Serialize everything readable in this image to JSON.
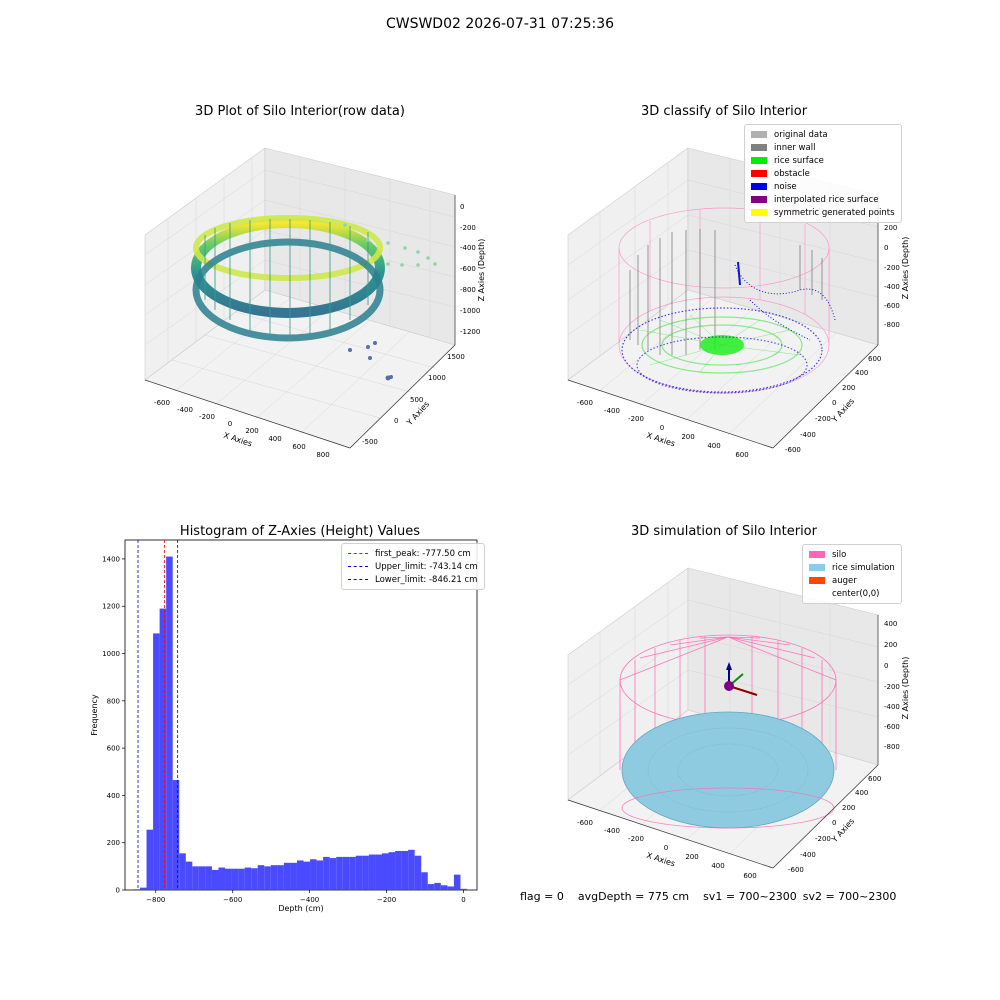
{
  "figure": {
    "suptitle": "CWSWD02 2026-07-31 07:25:36"
  },
  "footer": {
    "flag": "flag = 0",
    "avg_depth": "avgDepth = 775 cm",
    "sv1": "sv1 = 700~2300",
    "sv2": "sv2 = 700~2300"
  },
  "panels": {
    "raw": {
      "title": "3D Plot of Silo Interior(row data)",
      "xlabel": "X Axies",
      "ylabel": "Y Axies",
      "zlabel": "Z Axies (Depth)",
      "xticks": [
        "-600",
        "-400",
        "-200",
        "0",
        "200",
        "400",
        "600",
        "800"
      ],
      "yticks": [
        "-500",
        "0",
        "500",
        "1000",
        "1500"
      ],
      "zticks": [
        "0",
        "-200",
        "-400",
        "-600",
        "-800",
        "-1000",
        "-1200"
      ]
    },
    "classify": {
      "title": "3D classify of Silo Interior",
      "xlabel": "X Axies",
      "ylabel": "Y Axies",
      "zlabel": "Z Axies (Depth)",
      "xticks": [
        "-600",
        "-400",
        "-200",
        "0",
        "200",
        "400",
        "600"
      ],
      "yticks": [
        "-600",
        "-400",
        "-200",
        "0",
        "200",
        "400",
        "600"
      ],
      "zticks": [
        "200",
        "0",
        "-200",
        "-400",
        "-600",
        "-800"
      ],
      "legend": [
        {
          "label": "original data",
          "color": "#b0b0b0"
        },
        {
          "label": "inner wall",
          "color": "#808080"
        },
        {
          "label": "rice surface",
          "color": "#00ee00"
        },
        {
          "label": "obstacle",
          "color": "#ff0000"
        },
        {
          "label": "noise",
          "color": "#0000ee"
        },
        {
          "label": "interpolated rice surface",
          "color": "#800080"
        },
        {
          "label": "symmetric generated points",
          "color": "#ffff00"
        }
      ]
    },
    "histogram": {
      "title": "Histogram of Z-Axies (Height) Values",
      "legend": [
        {
          "label": "first_peak: -777.50 cm",
          "color": "#ff0000"
        },
        {
          "label": "Upper_limit: -743.14 cm",
          "color": "#0000cc"
        },
        {
          "label": "Lower_limit: -846.21 cm",
          "color": "#0000cc"
        }
      ]
    },
    "simulation": {
      "title": "3D simulation of Silo Interior",
      "xlabel": "X Axies",
      "ylabel": "Y Axies",
      "zlabel": "Z Axies (Depth)",
      "xticks": [
        "-600",
        "-400",
        "-200",
        "0",
        "200",
        "400",
        "600"
      ],
      "yticks": [
        "-600",
        "-400",
        "-200",
        "0",
        "200",
        "400",
        "600"
      ],
      "zticks": [
        "400",
        "200",
        "0",
        "-200",
        "-400",
        "-600",
        "-800"
      ],
      "legend": [
        {
          "label": "silo",
          "color": "#ff69b4"
        },
        {
          "label": "rice simulation",
          "color": "#87ceeb"
        },
        {
          "label": "auger",
          "color": "#ff4500"
        },
        {
          "label": "center(0,0)",
          "color": "#ffffff"
        }
      ]
    }
  },
  "chart_data": {
    "type": "bar",
    "title": "Histogram of Z-Axies (Height) Values",
    "xlabel": "Depth (cm)",
    "ylabel": "Frequency",
    "xlim": [
      -880,
      35
    ],
    "ylim": [
      0,
      1480
    ],
    "xticks": [
      -800,
      -600,
      -400,
      -200,
      0
    ],
    "yticks": [
      0,
      200,
      400,
      600,
      800,
      1000,
      1200,
      1400
    ],
    "bin_width": 17,
    "bin_starts": [
      -858,
      -841,
      -824,
      -807,
      -790,
      -773,
      -756,
      -739,
      -722,
      -705,
      -688,
      -671,
      -654,
      -637,
      -620,
      -603,
      -586,
      -569,
      -552,
      -535,
      -518,
      -501,
      -484,
      -467,
      -450,
      -433,
      -416,
      -399,
      -382,
      -365,
      -348,
      -331,
      -314,
      -297,
      -280,
      -263,
      -246,
      -229,
      -212,
      -195,
      -178,
      -161,
      -144,
      -127,
      -110,
      -93,
      -76,
      -59,
      -42,
      -25,
      -8
    ],
    "series": [
      {
        "values": [
          3,
          10,
          255,
          1085,
          1190,
          1410,
          465,
          155,
          120,
          100,
          100,
          100,
          85,
          95,
          90,
          90,
          90,
          95,
          92,
          105,
          100,
          105,
          105,
          115,
          115,
          125,
          120,
          130,
          125,
          140,
          135,
          140,
          140,
          140,
          145,
          145,
          150,
          150,
          155,
          160,
          165,
          165,
          170,
          145,
          75,
          25,
          30,
          20,
          15,
          65,
          5
        ]
      }
    ],
    "vlines": [
      {
        "x": -777.5,
        "label": "first_peak: -777.50 cm",
        "color": "#ff0000"
      },
      {
        "x": -743.14,
        "label": "Upper_limit: -743.14 cm",
        "color": "#0000cc"
      },
      {
        "x": -846.21,
        "label": "Lower_limit: -846.21 cm",
        "color": "#0000cc"
      }
    ],
    "bar_color": "#4040ff",
    "legend_position": "top-right"
  }
}
